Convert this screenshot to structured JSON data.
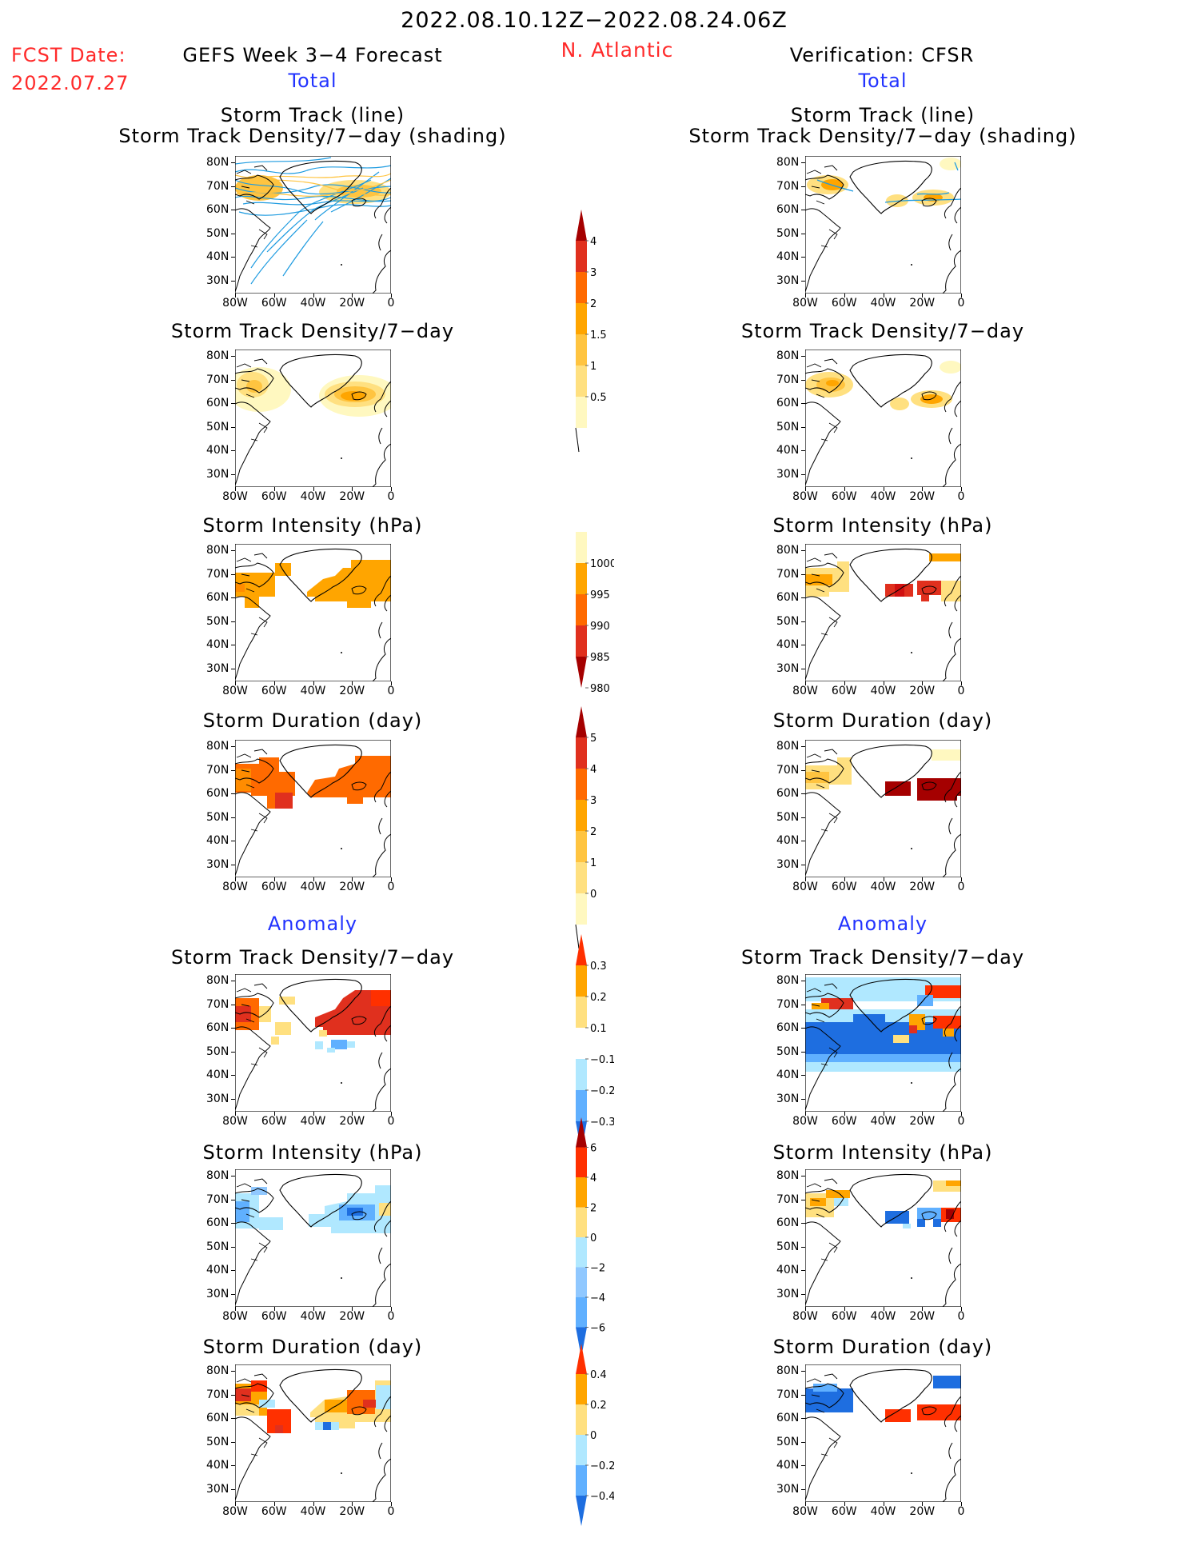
{
  "header": {
    "date_range": "2022.08.10.12Z−2022.08.24.06Z",
    "fcst_label": "FCST Date:",
    "fcst_date": "2022.07.27",
    "model_title": "GEFS Week 3−4 Forecast",
    "region": "N. Atlantic",
    "verification": "Verification: CFSR"
  },
  "sections": {
    "total": "Total",
    "anomaly": "Anomaly"
  },
  "panel_titles": {
    "track_line": "Storm Track (line)",
    "track_shading": "Storm Track Density/7−day (shading)",
    "density": "Storm Track Density/7−day",
    "intensity": "Storm Intensity (hPa)",
    "duration": "Storm Duration (day)"
  },
  "map_axes": {
    "lat_labels": [
      "80N",
      "70N",
      "60N",
      "50N",
      "40N",
      "30N"
    ],
    "lon_labels": [
      "80W",
      "60W",
      "40W",
      "20W",
      "0"
    ]
  },
  "colorbars": [
    {
      "id": "total-density",
      "type": "up",
      "labels": [
        "4",
        "3",
        "2",
        "1.5",
        "1",
        "0.5"
      ],
      "colors": [
        "#a50000",
        "#e0301e",
        "#ff6a00",
        "#ffa500",
        "#ffc440",
        "#ffe080",
        "#fff8c0"
      ]
    },
    {
      "id": "total-intensity",
      "type": "down",
      "labels": [
        "1000",
        "995",
        "990",
        "985",
        "980"
      ],
      "colors": [
        "#fff8c0",
        "#ffa500",
        "#ff6a00",
        "#e0301e",
        "#a50000"
      ]
    },
    {
      "id": "total-duration",
      "type": "up",
      "labels": [
        "5",
        "4",
        "3",
        "2",
        "1",
        "0"
      ],
      "colors": [
        "#a50000",
        "#e0301e",
        "#ff6a00",
        "#ffa500",
        "#ffc440",
        "#ffe080",
        "#fff8c0"
      ]
    },
    {
      "id": "anom-density",
      "type": "both",
      "labels": [
        "0.3",
        "0.2",
        "0.1",
        "−0.1",
        "−0.2",
        "−0.3"
      ],
      "colors": [
        "#ff3000",
        "#ffa500",
        "#ffe080",
        "#ffffff",
        "#b0e8ff",
        "#60b0ff",
        "#1e6ee0"
      ]
    },
    {
      "id": "anom-intensity",
      "type": "both",
      "labels": [
        "6",
        "4",
        "2",
        "0",
        "−2",
        "−4",
        "−6"
      ],
      "colors": [
        "#a50000",
        "#ff3000",
        "#ffa500",
        "#ffe080",
        "#b0e8ff",
        "#90c8ff",
        "#60b0ff",
        "#1e6ee0"
      ]
    },
    {
      "id": "anom-duration",
      "type": "both",
      "labels": [
        "0.4",
        "0.2",
        "0",
        "−0.2",
        "−0.4"
      ],
      "colors": [
        "#ff3000",
        "#ffa500",
        "#ffe080",
        "#b0e8ff",
        "#60b0ff",
        "#1e6ee0"
      ]
    }
  ],
  "palette": {
    "warm": [
      "#fff8c0",
      "#ffe080",
      "#ffc440",
      "#ffa500",
      "#ff6a00",
      "#e0301e",
      "#a50000"
    ],
    "cool": [
      "#b0e8ff",
      "#60b0ff",
      "#1e6ee0"
    ],
    "track_line": "#1e9be0",
    "title_red": "#ff2a2a",
    "title_blue": "#2233ff"
  }
}
